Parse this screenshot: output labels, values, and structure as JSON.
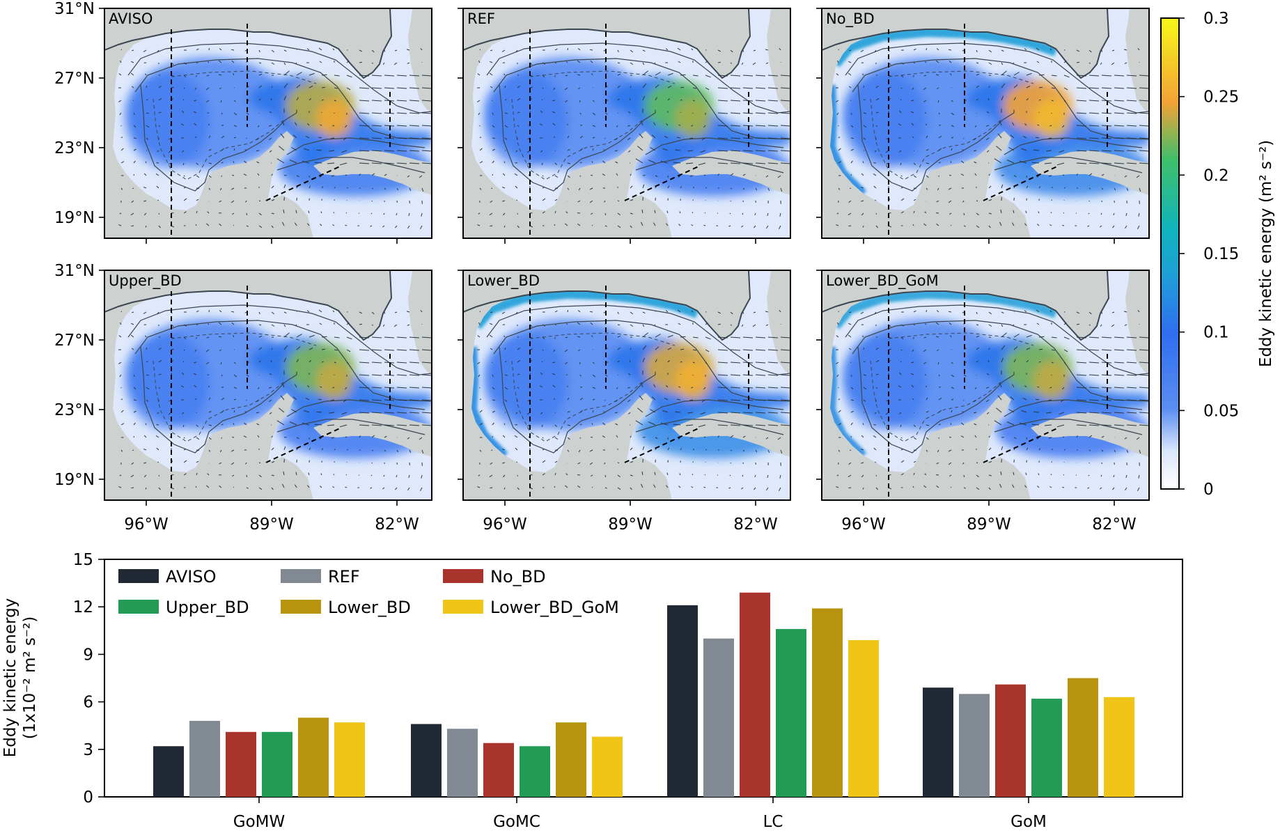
{
  "maps": {
    "panels": [
      {
        "label": "AVISO",
        "hotspot": 0.7,
        "shelf": 0.0,
        "south": 0.45
      },
      {
        "label": "REF",
        "hotspot": 0.55,
        "shelf": 0.15,
        "south": 0.3
      },
      {
        "label": "No_BD",
        "hotspot": 0.8,
        "shelf": 0.9,
        "south": 0.6
      },
      {
        "label": "Upper_BD",
        "hotspot": 0.6,
        "shelf": 0.2,
        "south": 0.3
      },
      {
        "label": "Lower_BD",
        "hotspot": 0.75,
        "shelf": 0.9,
        "south": 0.65
      },
      {
        "label": "Lower_BD_GoM",
        "hotspot": 0.6,
        "shelf": 0.85,
        "south": 0.35
      }
    ],
    "lat_ticks": [
      "31°N",
      "27°N",
      "23°N",
      "19°N"
    ],
    "lon_ticks": [
      "96°W",
      "89°W",
      "82°W"
    ],
    "colorbar": {
      "label": "Eddy kinetic energy (m² s⁻²)",
      "ticks": [
        "0.3",
        "0.25",
        "0.2",
        "0.15",
        "0.1",
        "0.05",
        "0"
      ],
      "range": [
        0,
        0.3
      ]
    }
  },
  "chart_data": {
    "type": "bar",
    "categories": [
      "GoMW",
      "GoMC",
      "LC",
      "GoM"
    ],
    "series": [
      {
        "name": "AVISO",
        "color": "#1f2833",
        "values": [
          3.2,
          4.6,
          12.1,
          6.9
        ]
      },
      {
        "name": "REF",
        "color": "#818a93",
        "values": [
          4.8,
          4.3,
          10.0,
          6.5
        ]
      },
      {
        "name": "No_BD",
        "color": "#a9342b",
        "values": [
          4.1,
          3.4,
          12.9,
          7.1
        ]
      },
      {
        "name": "Upper_BD",
        "color": "#229b55",
        "values": [
          4.1,
          3.2,
          10.6,
          6.2
        ]
      },
      {
        "name": "Lower_BD",
        "color": "#b8940e",
        "values": [
          5.0,
          4.7,
          11.9,
          7.5
        ]
      },
      {
        "name": "Lower_BD_GoM",
        "color": "#f1c517",
        "values": [
          4.7,
          3.8,
          9.9,
          6.3
        ]
      }
    ],
    "ylabel_line1": "Eddy kinetic energy",
    "ylabel_line2": "(1x10⁻² m² s⁻²)",
    "ylim": [
      0,
      15
    ],
    "yticks": [
      "0",
      "3",
      "6",
      "9",
      "12",
      "15"
    ],
    "legend_position": "top-left"
  }
}
